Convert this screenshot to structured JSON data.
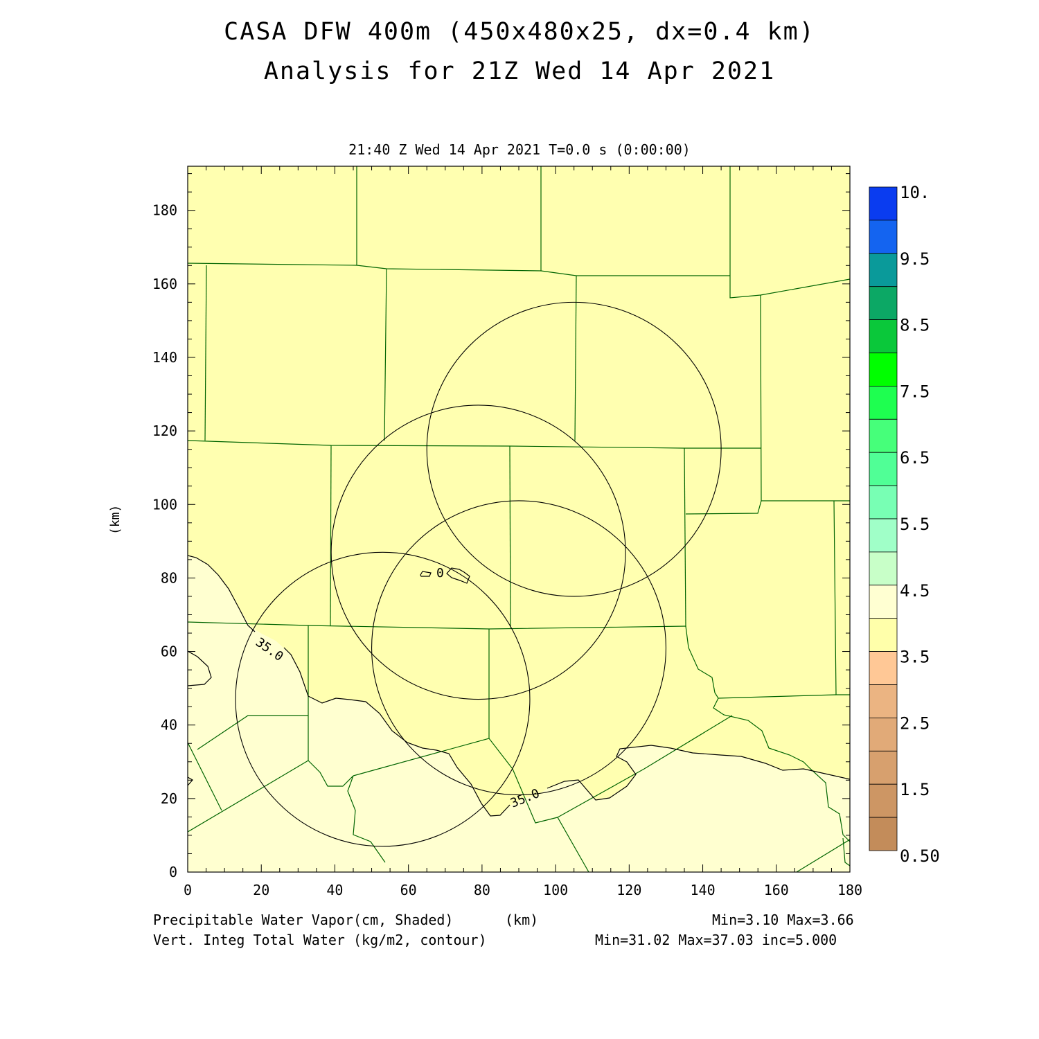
{
  "title_line1": "CASA DFW 400m (450x480x25, dx=0.4 km)",
  "title_line2": "Analysis for 21Z Wed 14 Apr 2021",
  "subtitle": "21:40 Z Wed 14 Apr 2021    T=0.0 s (0:00:00)",
  "footer": {
    "line1_left": "Precipitable Water Vapor(cm, Shaded)",
    "line1_unit": "(km)",
    "line1_right": "Min=3.10 Max=3.66",
    "line2_left": "Vert. Integ Total Water (kg/m2, contour)",
    "line2_right": "Min=31.02 Max=37.03 inc=5.000"
  },
  "axes": {
    "x_ticks": [
      "0",
      "20",
      "40",
      "60",
      "80",
      "100",
      "120",
      "140",
      "160",
      "180"
    ],
    "y_ticks": [
      "0",
      "20",
      "40",
      "60",
      "80",
      "100",
      "120",
      "140",
      "160",
      "180"
    ],
    "y_label": "(km)",
    "x_range": [
      0,
      180
    ],
    "y_range": [
      0,
      192
    ]
  },
  "colorbar": {
    "labels": [
      "10.",
      "9.5",
      "8.5",
      "7.5",
      "6.5",
      "5.5",
      "4.5",
      "3.5",
      "2.5",
      "1.5",
      "0.50"
    ],
    "colors_top_to_bottom": [
      "#0a3cf0",
      "#1464f0",
      "#0a9a9a",
      "#0ca865",
      "#0ac83a",
      "#00ff00",
      "#1eff50",
      "#46ff7a",
      "#50ff96",
      "#78ffb4",
      "#a0ffc8",
      "#c8ffc8",
      "#ffffd2",
      "#ffffaa",
      "#ffc896",
      "#ebb482",
      "#e1aa78",
      "#d7a06e",
      "#cd9664",
      "#c38c5a"
    ]
  },
  "contour_labels": [
    "35.0",
    "35.0",
    "0"
  ],
  "colors": {
    "field_main": "#ffffb0",
    "field_low": "#ffffd0",
    "county_lines": "#006400"
  },
  "chart_data": {
    "type": "heatmap",
    "title": "CASA DFW 400m (450x480x25, dx=0.4 km)",
    "xlabel": "(km)",
    "ylabel": "(km)",
    "xlim": [
      0,
      180
    ],
    "ylim": [
      0,
      192
    ],
    "shaded_field": "Precipitable Water Vapor (cm)",
    "shaded_min": 3.1,
    "shaded_max": 3.66,
    "contour_field": "Vert. Integ Total Water (kg/m2)",
    "contour_min": 31.02,
    "contour_max": 37.03,
    "contour_inc": 5.0,
    "radar_rings": [
      {
        "center_x": 105,
        "center_y": 115,
        "radius_km": 40
      },
      {
        "center_x": 79,
        "center_y": 87,
        "radius_km": 40
      },
      {
        "center_x": 53,
        "center_y": 47,
        "radius_km": 40
      },
      {
        "center_x": 90,
        "center_y": 61,
        "radius_km": 40
      }
    ]
  }
}
